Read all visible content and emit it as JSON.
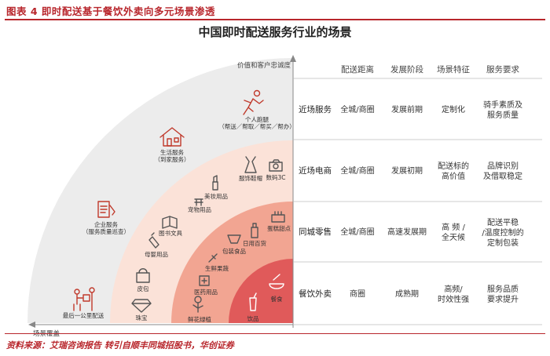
{
  "figure_title": "图表 4 即时配送基于餐饮外卖向多元场景渗透",
  "main_title": "中国即时配送服务行业的场景",
  "source": "资料来源：艾瑞咨询报告 转引自顺丰同城招股书，华创证券",
  "axes": {
    "y_label": "价值和客户忠诚度",
    "x_label": "场景覆盖"
  },
  "colors": {
    "ring1": "#e05a5a",
    "ring2": "#f2a592",
    "ring3": "#fbe2d8",
    "ring4": "#ececec",
    "accent": "#b8262c"
  },
  "table": {
    "headers": [
      "配送距离",
      "发展阶段",
      "场景特征",
      "服务要求"
    ],
    "rows": [
      {
        "scene": "近场服务",
        "distance": "全城/商圈",
        "stage": "发展前期",
        "feature": "定制化",
        "requirement": "骑手素质及服务质量"
      },
      {
        "scene": "近场电商",
        "distance": "全城/商圈",
        "stage": "发展初期",
        "feature": "配送标的高价值",
        "requirement": "品牌识别及借取稳定"
      },
      {
        "scene": "同城零售",
        "distance": "全城/商圈",
        "stage": "高速发展期",
        "feature": "高 频 / 全天候",
        "requirement": "配送平稳/温度控制的定制包装"
      },
      {
        "scene": "餐饮外卖",
        "distance": "商圈",
        "stage": "成熟期",
        "feature": "高频/时效性强",
        "requirement": "服务品质要求提升"
      }
    ]
  },
  "items": [
    {
      "key": "errand",
      "label": "个人跑腿",
      "sub": "（帮送／帮取／帮买／帮办）",
      "icon": "runner-icon"
    },
    {
      "key": "life",
      "label": "生活服务",
      "sub": "（到家服务）",
      "icon": "house-icon"
    },
    {
      "key": "enterprise",
      "label": "企业服务",
      "sub": "（服务质量巡查）",
      "icon": "clipboard-icon"
    },
    {
      "key": "lastmile",
      "label": "最后一公里配送",
      "sub": "",
      "icon": "courier-icon"
    },
    {
      "key": "jewelry",
      "label": "珠宝",
      "sub": "",
      "icon": "diamond-icon"
    },
    {
      "key": "bag",
      "label": "皮包",
      "sub": "",
      "icon": "handbag-icon"
    },
    {
      "key": "baby",
      "label": "母婴用品",
      "sub": "",
      "icon": "bottle-icon"
    },
    {
      "key": "books",
      "label": "图书文具",
      "sub": "",
      "icon": "book-icon"
    },
    {
      "key": "pet",
      "label": "宠物用品",
      "sub": "",
      "icon": "pet-icon"
    },
    {
      "key": "beauty",
      "label": "美妆用品",
      "sub": "",
      "icon": "lipstick-icon"
    },
    {
      "key": "clothes",
      "label": "服饰鞋帽",
      "sub": "",
      "icon": "dress-icon"
    },
    {
      "key": "digital",
      "label": "数码3C",
      "sub": "",
      "icon": "camera-icon"
    },
    {
      "key": "flowers",
      "label": "鲜花绿植",
      "sub": "",
      "icon": "flower-icon"
    },
    {
      "key": "medicine",
      "label": "医药用品",
      "sub": "",
      "icon": "medicine-icon"
    },
    {
      "key": "fresh",
      "label": "生鲜果蔬",
      "sub": "",
      "icon": "carrot-icon"
    },
    {
      "key": "packaged",
      "label": "包装食品",
      "sub": "",
      "icon": "package-icon"
    },
    {
      "key": "daily",
      "label": "日用百货",
      "sub": "",
      "icon": "bottle2-icon"
    },
    {
      "key": "cake",
      "label": "蛋糕甜点",
      "sub": "",
      "icon": "cake-icon"
    },
    {
      "key": "drinks",
      "label": "饮品",
      "sub": "",
      "icon": "cup-icon"
    },
    {
      "key": "food",
      "label": "餐食",
      "sub": "",
      "icon": "bowl-icon"
    }
  ]
}
